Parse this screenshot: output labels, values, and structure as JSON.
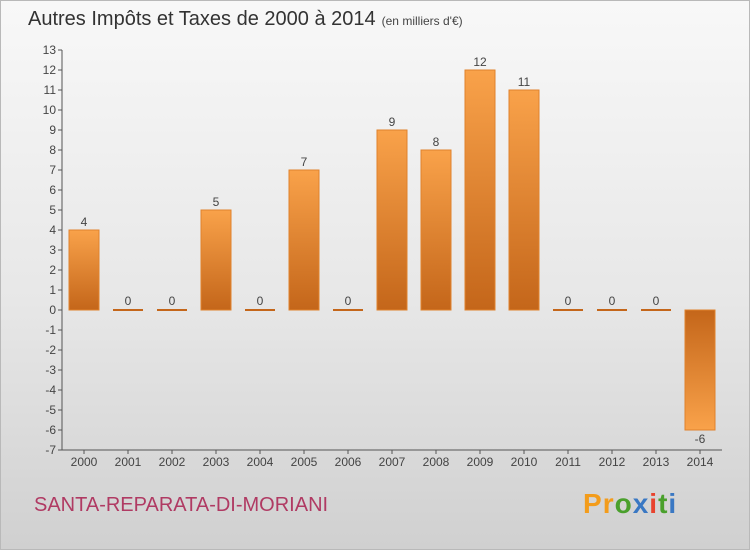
{
  "header": {
    "title": "Autres Impôts et Taxes de 2000 à 2014",
    "unit": "(en milliers d'€)"
  },
  "footer": {
    "commune": "SANTA-REPARATA-DI-MORIANI",
    "logo": {
      "letters": [
        "P",
        "r",
        "o",
        "x",
        "i",
        "t",
        "i"
      ],
      "colors": [
        "#f39c1b",
        "#f39c1b",
        "#4aa02c",
        "#3a78c3",
        "#e8432e",
        "#4aa02c",
        "#3a78c3"
      ]
    }
  },
  "chart_data": {
    "type": "bar",
    "title": "Autres Impôts et Taxes de 2000 à 2014",
    "subtitle": "(en milliers d'€)",
    "categories": [
      "2000",
      "2001",
      "2002",
      "2003",
      "2004",
      "2005",
      "2006",
      "2007",
      "2008",
      "2009",
      "2010",
      "2011",
      "2012",
      "2013",
      "2014"
    ],
    "values": [
      4,
      0,
      0,
      5,
      0,
      7,
      0,
      9,
      8,
      12,
      11,
      0,
      0,
      0,
      -6
    ],
    "ylim": [
      -7,
      13
    ],
    "yticks": [
      -7,
      -6,
      -5,
      -4,
      -3,
      -2,
      -1,
      0,
      1,
      2,
      3,
      4,
      5,
      6,
      7,
      8,
      9,
      10,
      11,
      12,
      13
    ],
    "grid": false,
    "colors": {
      "bar_light": "#f9a24a",
      "bar_dark": "#c4661a",
      "bar_edge": "#e0822c",
      "axis": "#555555"
    }
  }
}
